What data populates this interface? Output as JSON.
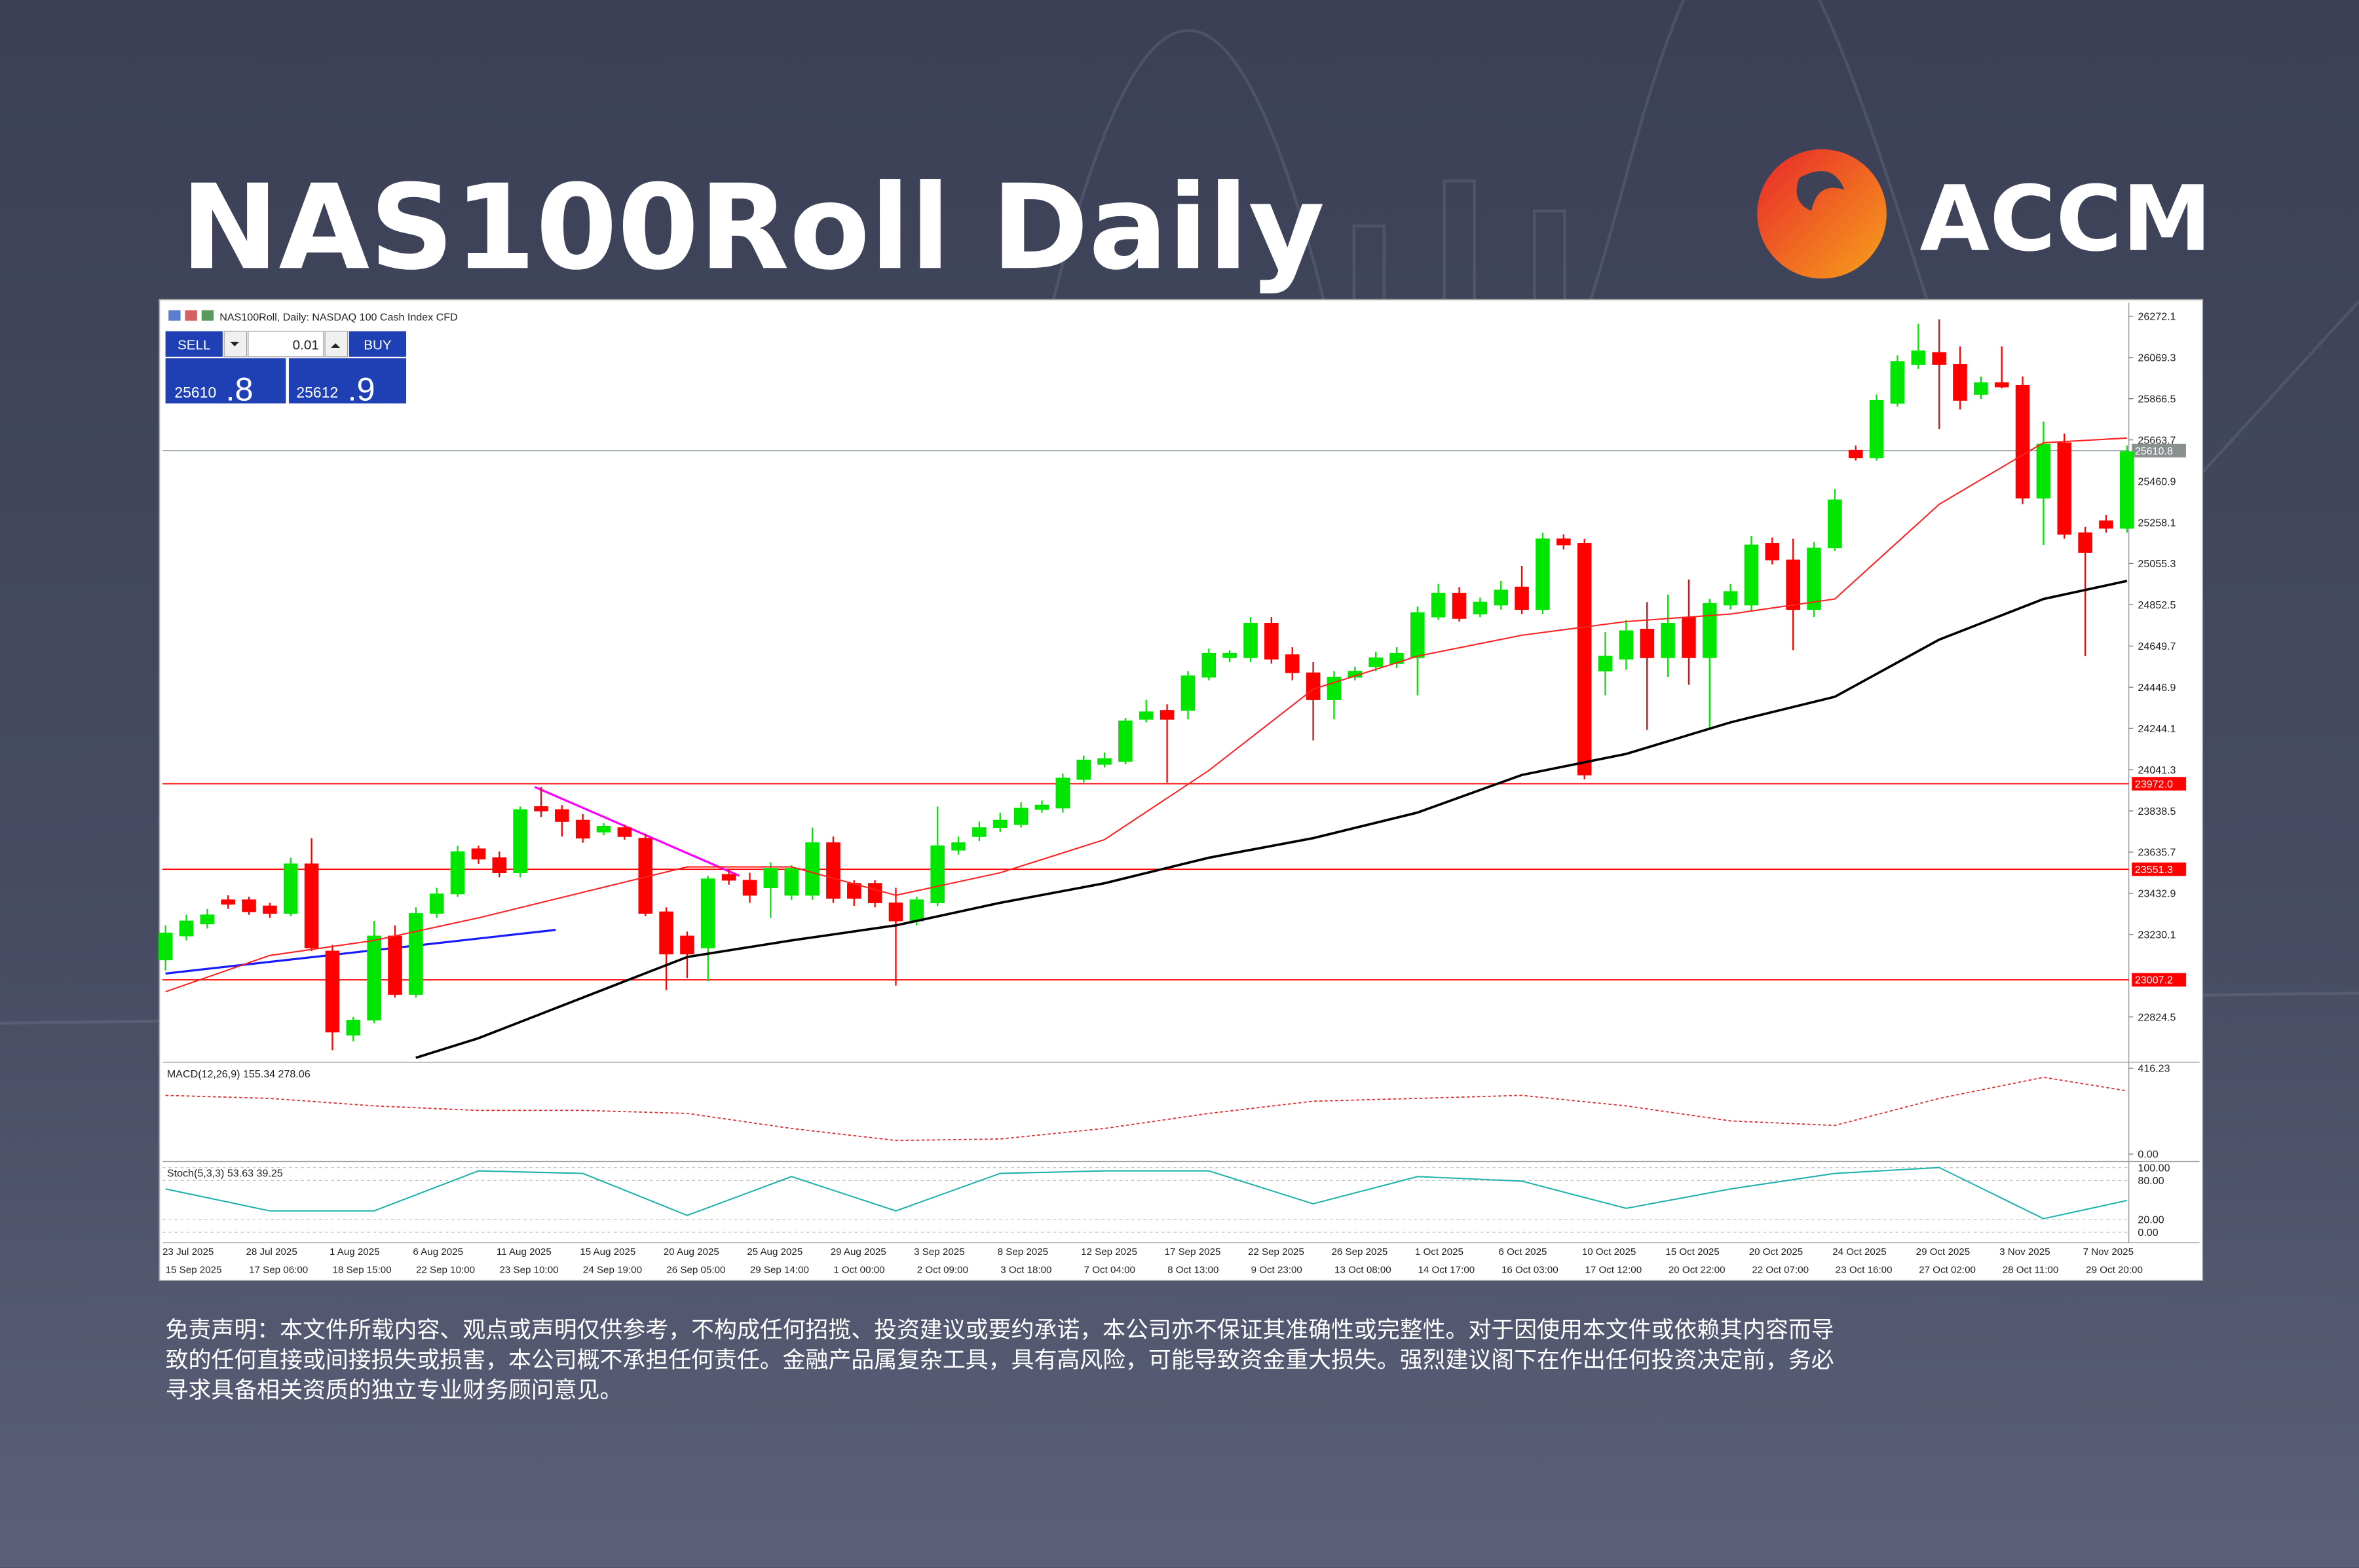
{
  "header": {
    "title": "NAS100Roll Daily",
    "logo": "ACCM"
  },
  "trade_panel": {
    "symbol": "NAS100Roll, Daily:  NASDAQ 100 Cash Index CFD",
    "sell": "SELL",
    "buy": "BUY",
    "volume": "0.01",
    "sell_big": "25610",
    "sell_small": ".8",
    "buy_big": "25612",
    "buy_small": ".9"
  },
  "chart_data": {
    "type": "candlestick",
    "up_color": "#00e600",
    "down_color": "#ff0000",
    "ylim": [
      22609,
      26339
    ],
    "yticks": [
      26272.1,
      26069.3,
      25866.5,
      25663.7,
      25460.9,
      25258.1,
      25055.3,
      24852.5,
      24649.7,
      24446.9,
      24244.1,
      24041.3,
      23838.5,
      23635.7,
      23432.9,
      23230.1,
      22824.5
    ],
    "open": [
      23105,
      23223,
      23282,
      23401,
      23401,
      23371,
      23334,
      23578,
      23149,
      22735,
      22809,
      23223,
      22935,
      23334,
      23430,
      23652,
      23608,
      23534,
      23860,
      23845,
      23793,
      23734,
      23756,
      23704,
      23342,
      23223,
      23164,
      23526,
      23497,
      23460,
      23423,
      23423,
      23682,
      23482,
      23482,
      23386,
      23297,
      23386,
      23645,
      23712,
      23756,
      23771,
      23845,
      23852,
      23993,
      24067,
      24082,
      24289,
      24333,
      24333,
      24496,
      24592,
      24592,
      24762,
      24607,
      24518,
      24385,
      24496,
      24548,
      24563,
      24592,
      24792,
      24910,
      24807,
      24851,
      24940,
      24829,
      25177,
      25155,
      24526,
      24585,
      24733,
      24592,
      24792,
      24592,
      24851,
      24851,
      25155,
      25073,
      24829,
      25132,
      25613,
      25576,
      25843,
      26035,
      26094,
      26035,
      25887,
      25946,
      25932,
      25377,
      25650,
      25207,
      25266,
      25229
    ],
    "high": [
      23275,
      23327,
      23356,
      23423,
      23416,
      23386,
      23608,
      23704,
      23179,
      22824,
      23297,
      23275,
      23364,
      23460,
      23667,
      23667,
      23638,
      23860,
      23956,
      23867,
      23823,
      23778,
      23771,
      23726,
      23364,
      23245,
      23519,
      23549,
      23534,
      23586,
      23571,
      23756,
      23712,
      23497,
      23497,
      23460,
      23416,
      23860,
      23712,
      23786,
      23830,
      23882,
      23889,
      24022,
      24111,
      24126,
      24296,
      24385,
      24363,
      24526,
      24637,
      24629,
      24792,
      24792,
      24644,
      24570,
      24526,
      24548,
      24622,
      24644,
      24844,
      24955,
      24940,
      24888,
      24970,
      25044,
      25207,
      25199,
      25177,
      24718,
      24777,
      24866,
      24903,
      24977,
      24881,
      24955,
      25192,
      25184,
      25177,
      25162,
      25421,
      25636,
      25887,
      26080,
      26235,
      26257,
      26124,
      25976,
      26124,
      25976,
      25754,
      25695,
      25236,
      25295,
      25636
    ],
    "low": [
      23053,
      23201,
      23260,
      23356,
      23327,
      23312,
      23320,
      23149,
      22661,
      22705,
      22794,
      22920,
      22920,
      23312,
      23416,
      23578,
      23512,
      23512,
      23808,
      23712,
      23682,
      23719,
      23697,
      23320,
      22957,
      23016,
      23001,
      23475,
      23386,
      23312,
      23401,
      23401,
      23386,
      23371,
      23364,
      22979,
      23275,
      23371,
      23623,
      23690,
      23734,
      23756,
      23830,
      23830,
      23978,
      24052,
      24067,
      24274,
      23978,
      24289,
      24481,
      24570,
      24570,
      24563,
      24481,
      24185,
      24289,
      24481,
      24526,
      24541,
      24407,
      24777,
      24770,
      24792,
      24829,
      24807,
      24807,
      25125,
      23993,
      24407,
      24533,
      24237,
      24496,
      24459,
      24237,
      24829,
      24822,
      25051,
      24629,
      24792,
      25118,
      25562,
      25562,
      25828,
      26013,
      25717,
      25813,
      25865,
      25917,
      25347,
      25147,
      25177,
      24600,
      25207,
      25207
    ],
    "close": [
      23238,
      23297,
      23327,
      23379,
      23342,
      23334,
      23578,
      23164,
      22750,
      22809,
      23223,
      22935,
      23334,
      23430,
      23638,
      23601,
      23534,
      23845,
      23838,
      23786,
      23704,
      23763,
      23712,
      23334,
      23134,
      23134,
      23504,
      23497,
      23423,
      23556,
      23556,
      23682,
      23408,
      23408,
      23386,
      23297,
      23401,
      23667,
      23682,
      23756,
      23793,
      23852,
      23867,
      24000,
      24089,
      24096,
      24281,
      24326,
      24289,
      24503,
      24614,
      24614,
      24762,
      24585,
      24518,
      24385,
      24496,
      24526,
      24592,
      24614,
      24814,
      24910,
      24785,
      24866,
      24925,
      24829,
      25177,
      25147,
      24015,
      24600,
      24725,
      24592,
      24762,
      24592,
      24859,
      24918,
      25147,
      25073,
      24829,
      25132,
      25369,
      25576,
      25858,
      26050,
      26102,
      26035,
      25858,
      25946,
      25924,
      25377,
      25643,
      25199,
      25110,
      25229,
      25606
    ],
    "overlays": [
      {
        "color": "#ff2020",
        "x": [
          0,
          5,
          10,
          15,
          20,
          25,
          30,
          35,
          40,
          45,
          50,
          55,
          60,
          65,
          70,
          75,
          80,
          85,
          90,
          94
        ],
        "values": [
          22949,
          23127,
          23201,
          23312,
          23438,
          23563,
          23563,
          23423,
          23534,
          23697,
          24037,
          24437,
          24600,
          24703,
          24770,
          24807,
          24881,
          25347,
          25650,
          25673
        ]
      },
      {
        "color": "#000000",
        "x": [
          12,
          15,
          20,
          25,
          30,
          35,
          40,
          45,
          50,
          55,
          60,
          65,
          70,
          75,
          80,
          85,
          90,
          94
        ],
        "values": [
          22624,
          22720,
          22920,
          23120,
          23201,
          23275,
          23386,
          23482,
          23608,
          23704,
          23830,
          24015,
          24119,
          24274,
          24400,
          24681,
          24881,
          24970
        ]
      }
    ],
    "trendlines": [
      {
        "color": "#1a1aff",
        "x": [
          0,
          18.7
        ],
        "values": [
          23038,
          23253
        ]
      },
      {
        "color": "#ff00ff",
        "x": [
          17.7,
          27.5
        ],
        "values": [
          23956,
          23519
        ]
      }
    ],
    "current_price": 25610.8,
    "levels": [
      {
        "value": 23972,
        "label": "23972.0",
        "color": "#ff0000"
      },
      {
        "value": 23551.3,
        "color": "#ff0000"
      },
      {
        "value": 23007.2,
        "color": "#ff0000"
      }
    ],
    "macd": {
      "label": "MACD(12,26,9) 155.34 278.06",
      "ylim": [
        -29,
        438
      ],
      "yticks": [
        416.23,
        {
          "value": 0,
          "label": "0.00"
        }
      ],
      "x": [
        0,
        5,
        10,
        15,
        20,
        25,
        30,
        35,
        40,
        45,
        50,
        55,
        60,
        65,
        70,
        75,
        80,
        85,
        90,
        94
      ],
      "values": [
        285,
        270,
        234,
        212,
        212,
        197,
        124,
        66,
        73,
        124,
        197,
        256,
        270,
        285,
        234,
        161,
        139,
        270,
        372,
        307
      ]
    },
    "stoch": {
      "label": "Stoch(5,3,3) 53.63 39.25",
      "ylim": [
        -14,
        107
      ],
      "yticks": [
        {
          "value": 100,
          "label": "100.00"
        },
        {
          "value": 80,
          "label": "80.00"
        },
        {
          "value": 20,
          "label": "20.00"
        },
        {
          "value": 0,
          "label": "0.00"
        }
      ],
      "x": [
        0,
        5,
        10,
        15,
        20,
        25,
        30,
        35,
        40,
        45,
        50,
        55,
        60,
        65,
        70,
        75,
        80,
        85,
        90,
        94
      ],
      "values": [
        67,
        33,
        33,
        95,
        91,
        26,
        86,
        33,
        91,
        95,
        95,
        44,
        86,
        79,
        37,
        67,
        91,
        100,
        21,
        49
      ]
    },
    "x_labels": [
      "23 Jul 2025",
      "28 Jul 2025",
      "1 Aug 2025",
      "6 Aug 2025",
      "11 Aug 2025",
      "15 Aug 2025",
      "20 Aug 2025",
      "25 Aug 2025",
      "29 Aug 2025",
      "3 Sep 2025",
      "8 Sep 2025",
      "12 Sep 2025",
      "17 Sep 2025",
      "22 Sep 2025",
      "26 Sep 2025",
      "1 Oct 2025",
      "6 Oct 2025",
      "10 Oct 2025",
      "15 Oct 2025",
      "20 Oct 2025",
      "24 Oct 2025",
      "29 Oct 2025",
      "3 Nov 2025",
      "7 Nov 2025"
    ],
    "x_labels_2": [
      "15 Sep 2025",
      "17 Sep 06:00",
      "18 Sep 15:00",
      "22 Sep 10:00",
      "23 Sep 10:00",
      "24 Sep 19:00",
      "26 Sep 05:00",
      "29 Sep 14:00",
      "1 Oct 00:00",
      "2 Oct 09:00",
      "3 Oct 18:00",
      "7 Oct 04:00",
      "8 Oct 13:00",
      "9 Oct 23:00",
      "13 Oct 08:00",
      "14 Oct 17:00",
      "16 Oct 03:00",
      "17 Oct 12:00",
      "20 Oct 22:00",
      "22 Oct 07:00",
      "23 Oct 16:00",
      "27 Oct 02:00",
      "28 Oct 11:00",
      "29 Oct 20:00"
    ]
  },
  "disclaimer": [
    "免责声明：本文件所载内容、观点或声明仅供参考，不构成任何招揽、投资建议或要约承诺，本公司亦不保证其准确性或完整性。对于因使用本文件或依赖其内容而导",
    "致的任何直接或间接损失或损害，本公司概不承担任何责任。金融产品属复杂工具，具有高风险，可能导致资金重大损失。强烈建议阁下在作出任何投资决定前，务必",
    "寻求具备相关资质的独立专业财务顾问意见。"
  ]
}
